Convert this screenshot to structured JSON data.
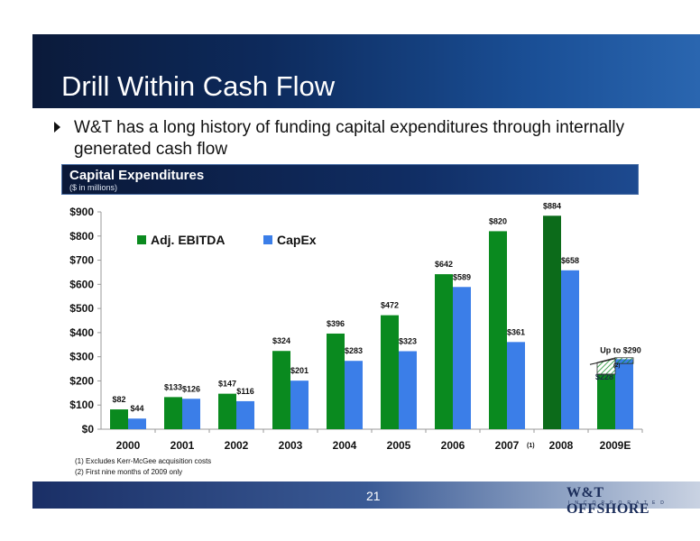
{
  "slide": {
    "title": "Drill Within Cash Flow",
    "bullet": "W&T has a long history of funding capital expenditures through internally generated cash flow",
    "section_header": "Capital Expenditures",
    "section_sub": "($ in millions)",
    "footnote1": "(1) Excludes Kerr-McGee acquisition costs",
    "footnote2": "(2) First nine months of 2009 only",
    "page_number": "21",
    "logo_name": "W&T OFFSHORE",
    "logo_sub": "INCORPORATED"
  },
  "chart_data": {
    "type": "bar",
    "categories": [
      "2000",
      "2001",
      "2002",
      "2003",
      "2004",
      "2005",
      "2006",
      "2007",
      "2008",
      "2009E"
    ],
    "category_notes": {
      "2007": "(1)"
    },
    "ylim": [
      0,
      900
    ],
    "yticks": [
      "$0",
      "$100",
      "$200",
      "$300",
      "$400",
      "$500",
      "$600",
      "$700",
      "$800",
      "$900"
    ],
    "series": [
      {
        "name": "Adj. EBITDA",
        "color": "#0a8a1f",
        "values": [
          82,
          133,
          147,
          324,
          396,
          472,
          642,
          820,
          884,
          228
        ],
        "labels": [
          "$82",
          "$133",
          "$147",
          "$324",
          "$396",
          "$472",
          "$642",
          "$820",
          "$884",
          "$228"
        ]
      },
      {
        "name": "CapEx",
        "color": "#3b7ee8",
        "values": [
          44,
          126,
          116,
          201,
          283,
          323,
          589,
          361,
          658,
          290
        ],
        "labels": [
          "$44",
          "$126",
          "$116",
          "$201",
          "$283",
          "$323",
          "$589",
          "$361",
          "$658",
          "Up to $290"
        ]
      }
    ],
    "annotation_2009_ebitda_note": "(2)",
    "legend_position": "top-left",
    "grid": false
  }
}
